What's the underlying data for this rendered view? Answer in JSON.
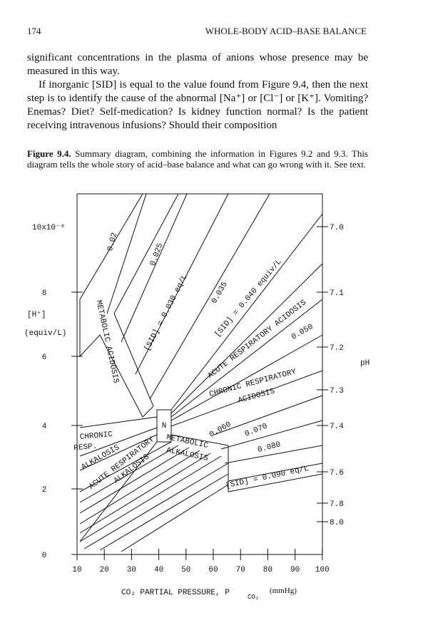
{
  "header": {
    "page_number": "174",
    "running_head": "WHOLE-BODY ACID–BASE BALANCE"
  },
  "paragraphs": [
    "significant concentrations in the plasma of anions whose presence may be measured in this way.",
    "If inorganic [SID] is equal to the value found from Figure 9.4, then the next step is to identify the cause of the abnormal [Na⁺] or [Cl⁻] or [K⁺]. Vomiting? Enemas? Diet? Self-medication? Is kidney function normal? Is the patient receiving intravenous infusions? Should their composition"
  ],
  "figure": {
    "caption_label": "Figure 9.4.",
    "caption": "Summary diagram, combining the information in Figures 9.2 and 9.3. This diagram tells the whole story of acid–base balance and what can go wrong with it. See text.",
    "y_multiplier": "10x10⁻⁸",
    "y_label": "[H⁺]",
    "y_unit": "(equiv/L)",
    "y_ticks": [
      "8",
      "6",
      "4",
      "2",
      "0"
    ],
    "ph_label": "pH",
    "ph_ticks": [
      "7.0",
      "7.1",
      "7.2",
      "7.3",
      "7.4",
      "7.6",
      "7.8",
      "8.0"
    ],
    "x_ticks": [
      "10",
      "20",
      "30",
      "40",
      "50",
      "60",
      "70",
      "80",
      "90",
      "100"
    ],
    "x_label": "CO₂ PARTIAL PRESSURE, P",
    "x_label_sub": "CO₂",
    "x_unit": "(mmHg)",
    "line_labels": [
      "0.02",
      "0.025",
      "[SID] = 0.030 eq/L",
      "0.035",
      "[SID] = 0.040 equiv/L",
      "0.050",
      "0.060",
      "0.070",
      "0.080",
      "[SID] = 0.090 eq/L"
    ],
    "regions": [
      "METABOLIC ACIDOSIS",
      "ACUTE RESPIRATORY ACIDOSIS",
      "CHRONIC RESPIRATORY",
      "ACIDOSIS",
      "N",
      "METABOLIC",
      "ALKALOSIS",
      "CHRONIC",
      "RESP.",
      "ALKALOSIS",
      "ACUTE RESPIRATORY",
      "ALKALOSIS"
    ]
  }
}
